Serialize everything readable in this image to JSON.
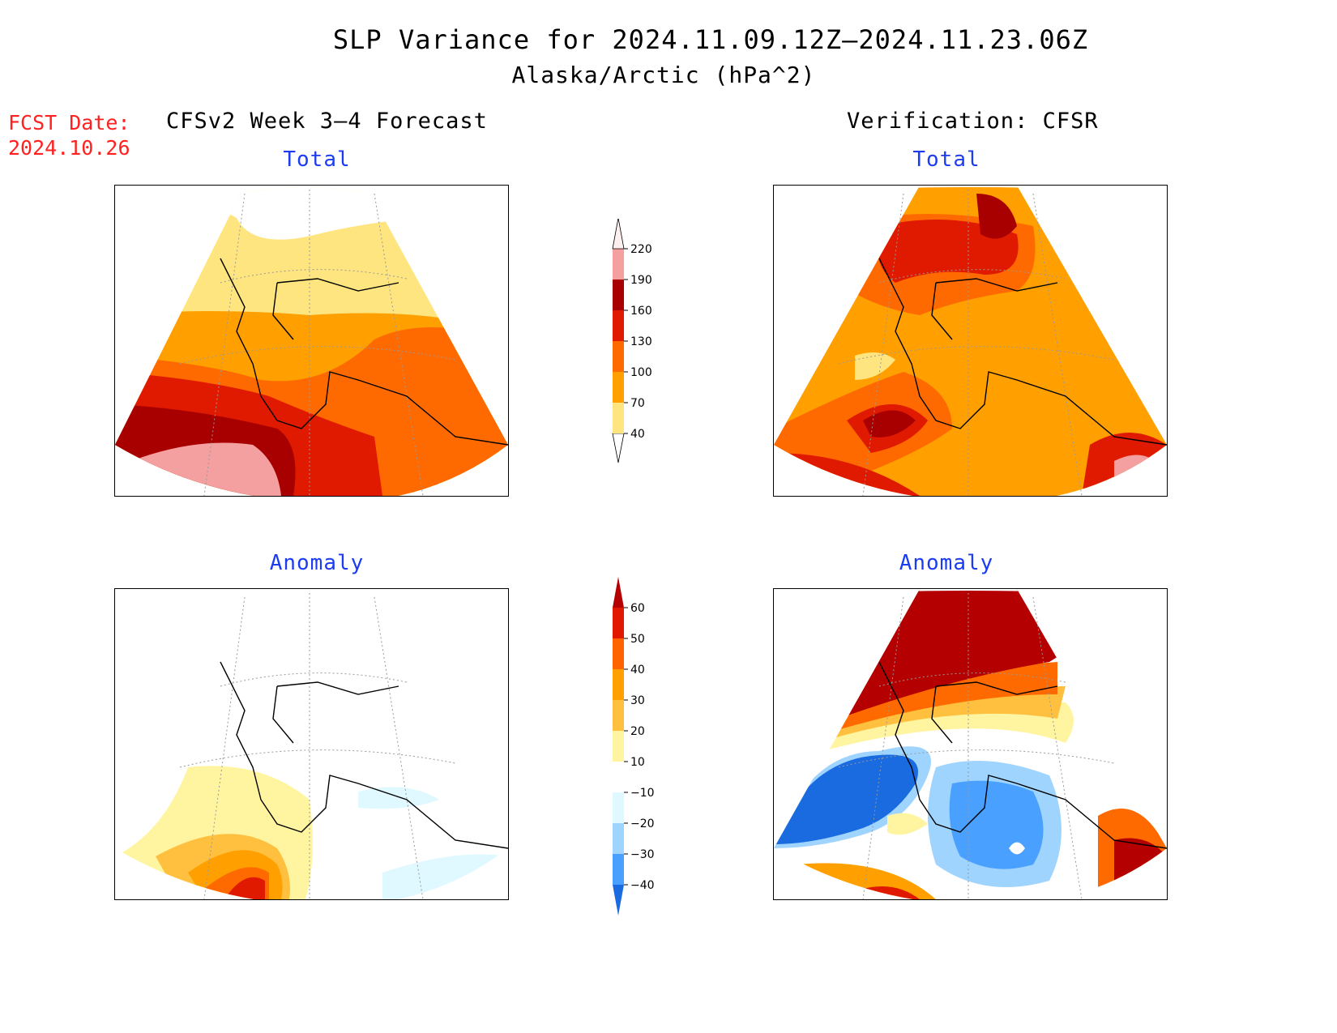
{
  "title": {
    "line1": "SLP Variance for 2024.11.09.12Z–2024.11.23.06Z",
    "line2": "Alaska/Arctic (hPa^2)"
  },
  "fcst_date": {
    "label": "FCST Date:",
    "value": "2024.10.26"
  },
  "headers": {
    "forecast": "CFSv2 Week 3–4 Forecast",
    "verification": "Verification: CFSR"
  },
  "panels": {
    "forecast_total": {
      "subtitle": "Total"
    },
    "verification_total": {
      "subtitle": "Total"
    },
    "forecast_anomaly": {
      "subtitle": "Anomaly"
    },
    "verification_anomaly": {
      "subtitle": "Anomaly"
    }
  },
  "total_colorbar": {
    "levels": [
      "40",
      "70",
      "100",
      "130",
      "160",
      "190",
      "220"
    ],
    "colors": [
      "#ffe57f",
      "#ffa000",
      "#ff6a00",
      "#e01a00",
      "#a80000",
      "#f4a0a0",
      "#fff0f0"
    ]
  },
  "anomaly_colorbar": {
    "levels": [
      "60",
      "50",
      "40",
      "30",
      "20",
      "10",
      "−10",
      "−20",
      "−30",
      "−40"
    ],
    "colors": [
      "#b40000",
      "#e01800",
      "#ff6400",
      "#ffa000",
      "#ffc040",
      "#fff5a0",
      "#ffffff",
      "#e0f8ff",
      "#9fd4ff",
      "#4aa0ff",
      "#1a6ae0"
    ]
  }
}
